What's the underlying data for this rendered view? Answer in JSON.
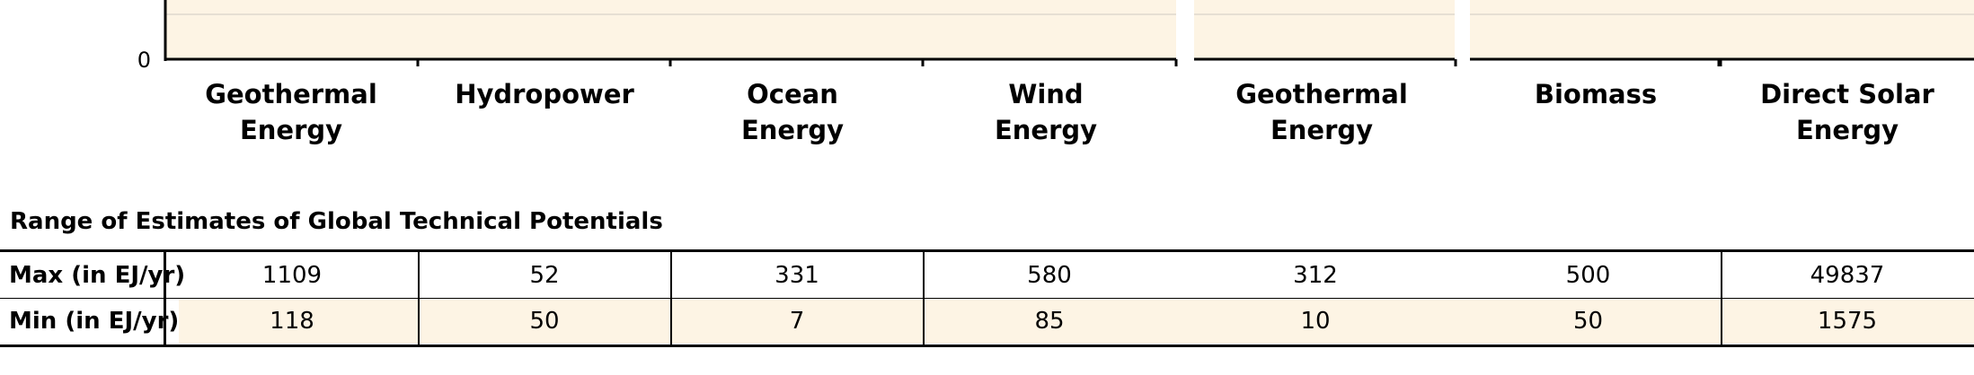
{
  "chart_data": {
    "type": "bar",
    "y_tick_labels": [
      "0"
    ],
    "categories": [
      [
        "Geothermal",
        "Energy"
      ],
      [
        "Hydropower"
      ],
      [
        "Ocean",
        "Energy"
      ],
      [
        "Wind",
        "Energy"
      ],
      [
        "Geothermal",
        "Energy"
      ],
      [
        "Biomass"
      ],
      [
        "Direct Solar",
        "Energy"
      ]
    ],
    "grid": true,
    "colors": {
      "panel": "#fdf4e4",
      "gridline": "#cfcac2",
      "axis": "#000000"
    }
  },
  "table": {
    "title": "Range of Estimates of Global Technical Potentials",
    "rows": [
      {
        "label": "Max (in EJ/yr)",
        "values": [
          "1109",
          "52",
          "331",
          "580",
          "312",
          "500",
          "49837"
        ]
      },
      {
        "label": "Min (in EJ/yr)",
        "values": [
          "118",
          "50",
          "7",
          "85",
          "10",
          "50",
          "1575"
        ]
      }
    ]
  }
}
